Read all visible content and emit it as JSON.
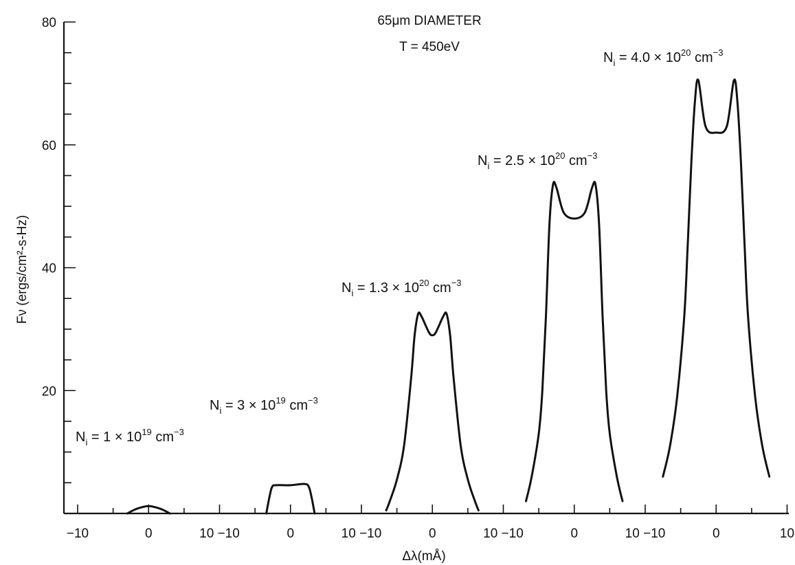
{
  "chart_data": {
    "type": "line",
    "title": "65μm DIAMETER",
    "subtitle": "T = 450eV",
    "xlabel": "Δλ(mÅ)",
    "ylabel": "Fν (ergs/cm²-s-Hz)",
    "ylim": [
      0,
      80
    ],
    "y_ticks": [
      0,
      20,
      40,
      60,
      80
    ],
    "y_tick_labels": [
      "",
      "20",
      "40",
      "60",
      "80"
    ],
    "x_panel_range": [
      -10,
      10
    ],
    "x_tick_labels": [
      "-10",
      "0",
      "10 -10",
      "0",
      "10 -10",
      "0",
      "10 -10",
      "0",
      "10 -10",
      "0",
      "10"
    ],
    "grid": false,
    "series": [
      {
        "name": "Nᵢ = 1 × 10¹⁹ cm⁻³",
        "label_base": "N",
        "label_sub": "i",
        "label_mid": " = 1 × 10",
        "label_exp": "19",
        "label_unit": " cm",
        "label_unit_exp": "−3",
        "x": [
          -3.0,
          -2.0,
          -1.0,
          0.0,
          1.0,
          2.0,
          3.0
        ],
        "y": [
          0.0,
          0.6,
          1.0,
          1.2,
          1.0,
          0.6,
          0.0
        ]
      },
      {
        "name": "Nᵢ = 3 × 10¹⁹ cm⁻³",
        "label_base": "N",
        "label_sub": "i",
        "label_mid": " = 3 × 10",
        "label_exp": "19",
        "label_unit": " cm",
        "label_unit_exp": "−3",
        "x": [
          -3.4,
          -3.0,
          -2.6,
          -2.0,
          0.0,
          2.0,
          2.6,
          3.0,
          3.4
        ],
        "y": [
          0.0,
          2.5,
          4.3,
          4.6,
          4.6,
          4.8,
          4.3,
          2.5,
          0.0
        ]
      },
      {
        "name": "Nᵢ = 1.3 × 10²⁰ cm⁻³",
        "label_base": "N",
        "label_sub": "i",
        "label_mid": " = 1.3 × 10",
        "label_exp": "20",
        "label_unit": " cm",
        "label_unit_exp": "−3",
        "x": [
          -6.5,
          -6.0,
          -5.0,
          -4.0,
          -3.0,
          -2.5,
          -2.0,
          -1.5,
          -0.5,
          0.0,
          0.5,
          1.5,
          2.0,
          2.5,
          3.0,
          4.0,
          5.0,
          6.0,
          6.5
        ],
        "y": [
          0.5,
          2.0,
          5.5,
          11.0,
          22.0,
          29.0,
          32.5,
          32.0,
          29.5,
          29.0,
          29.5,
          32.0,
          32.5,
          29.0,
          22.0,
          11.0,
          5.5,
          2.0,
          0.5
        ]
      },
      {
        "name": "Nᵢ = 2.5 × 10²⁰ cm⁻³",
        "label_base": "N",
        "label_sub": "i",
        "label_mid": " = 2.5 × 10",
        "label_exp": "20",
        "label_unit": " cm",
        "label_unit_exp": "−3",
        "x": [
          -6.8,
          -6.0,
          -5.0,
          -4.5,
          -4.0,
          -3.5,
          -3.0,
          -2.5,
          -1.5,
          0.0,
          1.5,
          2.5,
          3.0,
          3.5,
          4.0,
          4.5,
          5.0,
          6.0,
          6.8
        ],
        "y": [
          2.0,
          6.0,
          13.0,
          20.0,
          32.0,
          47.0,
          53.5,
          53.0,
          49.0,
          48.0,
          49.0,
          53.0,
          53.5,
          47.0,
          32.0,
          20.0,
          13.0,
          6.0,
          2.0
        ]
      },
      {
        "name": "Nᵢ = 4.0 × 10²⁰ cm⁻³",
        "label_base": "N",
        "label_sub": "i",
        "label_mid": " = 4.0 × 10",
        "label_exp": "20",
        "label_unit": " cm",
        "label_unit_exp": "−3",
        "x": [
          -7.5,
          -6.5,
          -5.5,
          -4.5,
          -4.0,
          -3.5,
          -3.0,
          -2.5,
          -1.5,
          0.0,
          1.5,
          2.5,
          3.0,
          3.5,
          4.0,
          4.5,
          5.5,
          6.5,
          7.5
        ],
        "y": [
          6.0,
          11.0,
          19.0,
          32.0,
          44.0,
          57.0,
          67.0,
          70.5,
          63.0,
          62.0,
          63.0,
          70.5,
          67.0,
          57.0,
          44.0,
          32.0,
          19.0,
          11.0,
          6.0
        ]
      }
    ]
  }
}
